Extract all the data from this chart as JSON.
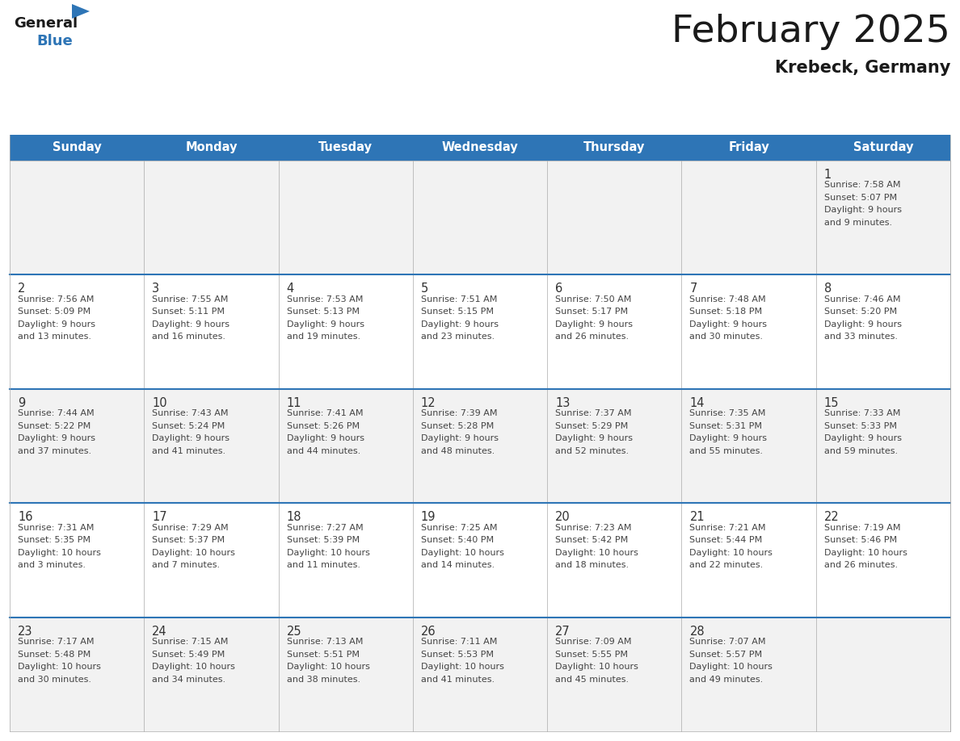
{
  "title": "February 2025",
  "subtitle": "Krebeck, Germany",
  "header_bg": "#2E75B6",
  "header_text_color": "#FFFFFF",
  "cell_bg_even": "#F2F2F2",
  "cell_bg_odd": "#FFFFFF",
  "border_color": "#2E75B6",
  "thin_border_color": "#AAAAAA",
  "days_of_week": [
    "Sunday",
    "Monday",
    "Tuesday",
    "Wednesday",
    "Thursday",
    "Friday",
    "Saturday"
  ],
  "calendar_data": [
    [
      null,
      null,
      null,
      null,
      null,
      null,
      {
        "day": 1,
        "sunrise": "7:58 AM",
        "sunset": "5:07 PM",
        "daylight": "9 hours\nand 9 minutes."
      }
    ],
    [
      {
        "day": 2,
        "sunrise": "7:56 AM",
        "sunset": "5:09 PM",
        "daylight": "9 hours\nand 13 minutes."
      },
      {
        "day": 3,
        "sunrise": "7:55 AM",
        "sunset": "5:11 PM",
        "daylight": "9 hours\nand 16 minutes."
      },
      {
        "day": 4,
        "sunrise": "7:53 AM",
        "sunset": "5:13 PM",
        "daylight": "9 hours\nand 19 minutes."
      },
      {
        "day": 5,
        "sunrise": "7:51 AM",
        "sunset": "5:15 PM",
        "daylight": "9 hours\nand 23 minutes."
      },
      {
        "day": 6,
        "sunrise": "7:50 AM",
        "sunset": "5:17 PM",
        "daylight": "9 hours\nand 26 minutes."
      },
      {
        "day": 7,
        "sunrise": "7:48 AM",
        "sunset": "5:18 PM",
        "daylight": "9 hours\nand 30 minutes."
      },
      {
        "day": 8,
        "sunrise": "7:46 AM",
        "sunset": "5:20 PM",
        "daylight": "9 hours\nand 33 minutes."
      }
    ],
    [
      {
        "day": 9,
        "sunrise": "7:44 AM",
        "sunset": "5:22 PM",
        "daylight": "9 hours\nand 37 minutes."
      },
      {
        "day": 10,
        "sunrise": "7:43 AM",
        "sunset": "5:24 PM",
        "daylight": "9 hours\nand 41 minutes."
      },
      {
        "day": 11,
        "sunrise": "7:41 AM",
        "sunset": "5:26 PM",
        "daylight": "9 hours\nand 44 minutes."
      },
      {
        "day": 12,
        "sunrise": "7:39 AM",
        "sunset": "5:28 PM",
        "daylight": "9 hours\nand 48 minutes."
      },
      {
        "day": 13,
        "sunrise": "7:37 AM",
        "sunset": "5:29 PM",
        "daylight": "9 hours\nand 52 minutes."
      },
      {
        "day": 14,
        "sunrise": "7:35 AM",
        "sunset": "5:31 PM",
        "daylight": "9 hours\nand 55 minutes."
      },
      {
        "day": 15,
        "sunrise": "7:33 AM",
        "sunset": "5:33 PM",
        "daylight": "9 hours\nand 59 minutes."
      }
    ],
    [
      {
        "day": 16,
        "sunrise": "7:31 AM",
        "sunset": "5:35 PM",
        "daylight": "10 hours\nand 3 minutes."
      },
      {
        "day": 17,
        "sunrise": "7:29 AM",
        "sunset": "5:37 PM",
        "daylight": "10 hours\nand 7 minutes."
      },
      {
        "day": 18,
        "sunrise": "7:27 AM",
        "sunset": "5:39 PM",
        "daylight": "10 hours\nand 11 minutes."
      },
      {
        "day": 19,
        "sunrise": "7:25 AM",
        "sunset": "5:40 PM",
        "daylight": "10 hours\nand 14 minutes."
      },
      {
        "day": 20,
        "sunrise": "7:23 AM",
        "sunset": "5:42 PM",
        "daylight": "10 hours\nand 18 minutes."
      },
      {
        "day": 21,
        "sunrise": "7:21 AM",
        "sunset": "5:44 PM",
        "daylight": "10 hours\nand 22 minutes."
      },
      {
        "day": 22,
        "sunrise": "7:19 AM",
        "sunset": "5:46 PM",
        "daylight": "10 hours\nand 26 minutes."
      }
    ],
    [
      {
        "day": 23,
        "sunrise": "7:17 AM",
        "sunset": "5:48 PM",
        "daylight": "10 hours\nand 30 minutes."
      },
      {
        "day": 24,
        "sunrise": "7:15 AM",
        "sunset": "5:49 PM",
        "daylight": "10 hours\nand 34 minutes."
      },
      {
        "day": 25,
        "sunrise": "7:13 AM",
        "sunset": "5:51 PM",
        "daylight": "10 hours\nand 38 minutes."
      },
      {
        "day": 26,
        "sunrise": "7:11 AM",
        "sunset": "5:53 PM",
        "daylight": "10 hours\nand 41 minutes."
      },
      {
        "day": 27,
        "sunrise": "7:09 AM",
        "sunset": "5:55 PM",
        "daylight": "10 hours\nand 45 minutes."
      },
      {
        "day": 28,
        "sunrise": "7:07 AM",
        "sunset": "5:57 PM",
        "daylight": "10 hours\nand 49 minutes."
      },
      null
    ]
  ],
  "logo_general_color": "#1a1a1a",
  "logo_blue_color": "#2E75B6",
  "logo_triangle_color": "#2E75B6",
  "title_color": "#1a1a1a",
  "subtitle_color": "#1a1a1a",
  "day_num_color": "#333333",
  "info_text_color": "#444444"
}
